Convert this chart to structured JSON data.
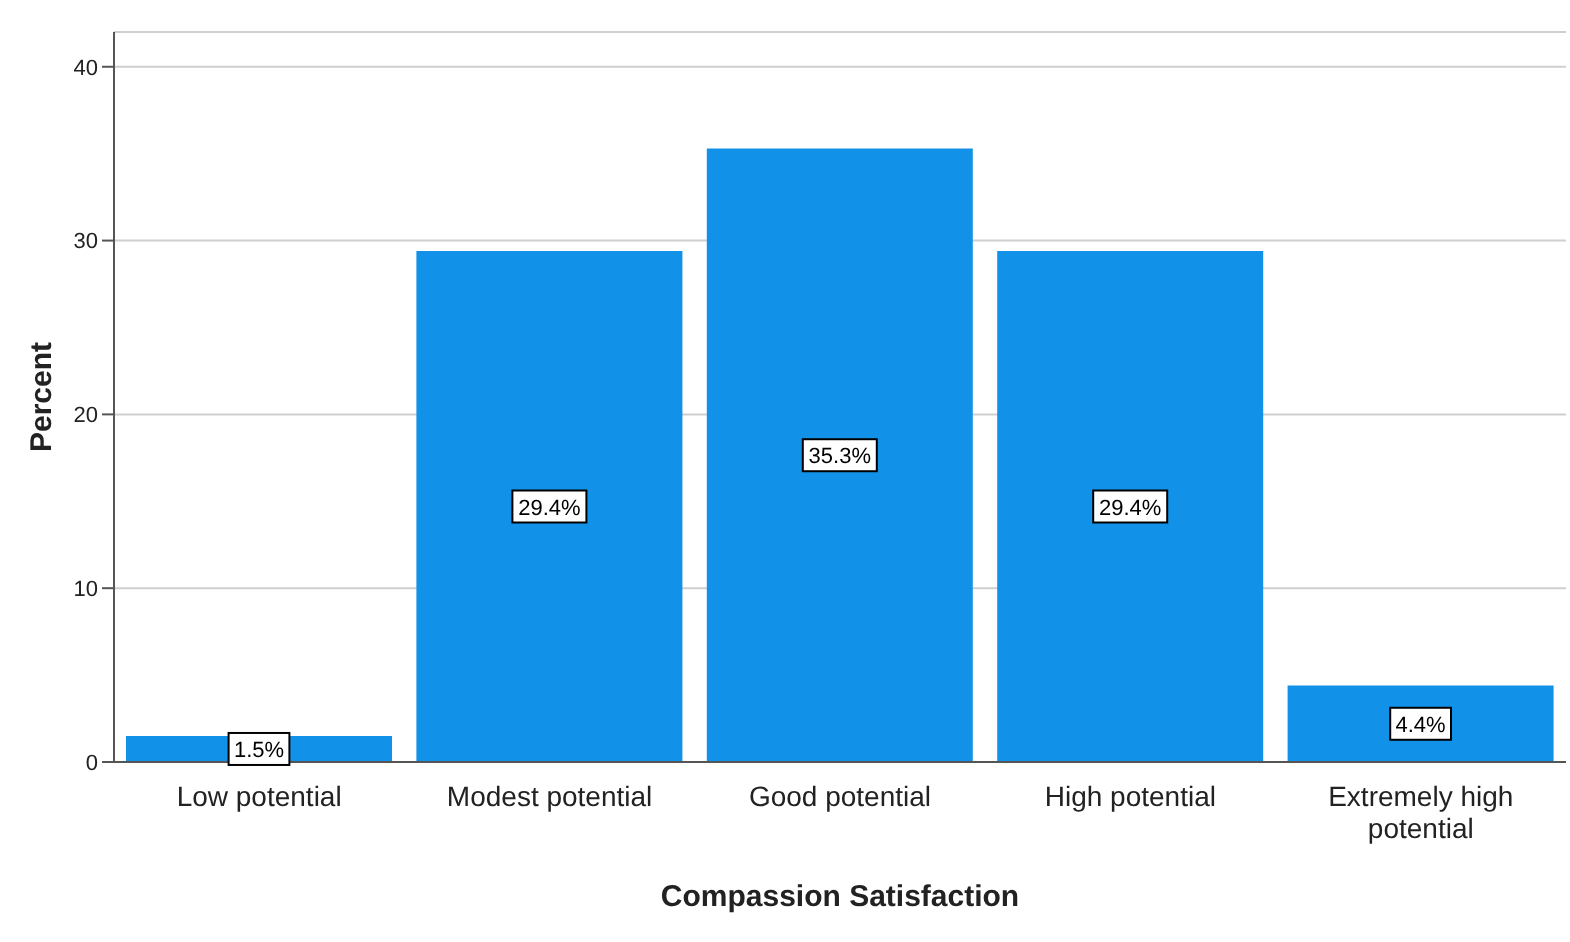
{
  "chart_data": {
    "type": "bar",
    "xlabel": "Compassion Satisfaction",
    "ylabel": "Percent",
    "categories": [
      "Low potential",
      "Modest potential",
      "Good potential",
      "High potential",
      "Extremely high potential"
    ],
    "values": [
      1.5,
      29.4,
      35.3,
      29.4,
      4.4
    ],
    "value_labels": [
      "1.5%",
      "29.4%",
      "35.3%",
      "29.4%",
      "4.4%"
    ],
    "color": "#1192e8",
    "ylim": [
      0,
      42
    ],
    "yticks": [
      0,
      10,
      20,
      30,
      40
    ],
    "grid": "y"
  }
}
